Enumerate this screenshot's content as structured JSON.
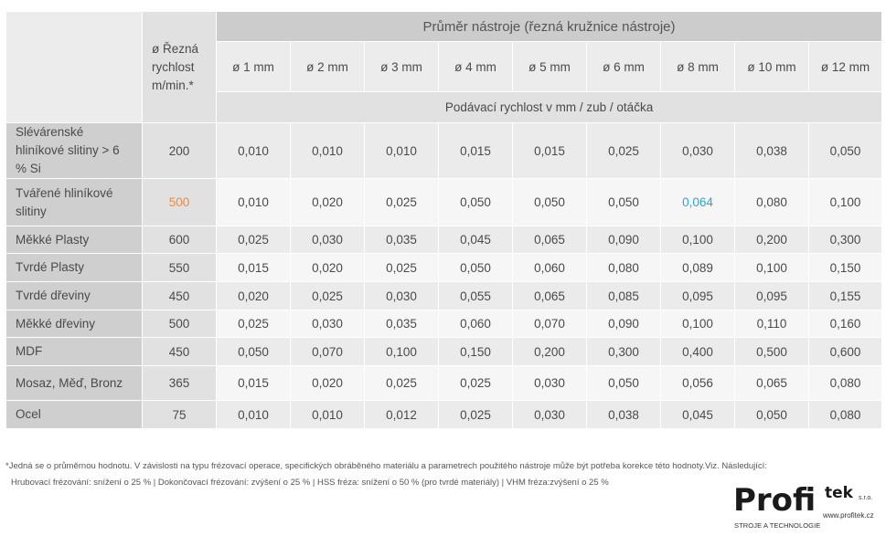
{
  "header": {
    "speed_label": "ø Řezná rychlost m/min.*",
    "group_title": "Průměr nástroje (řezná kružnice nástroje)",
    "diameters": [
      "ø 1 mm",
      "ø 2 mm",
      "ø 3 mm",
      "ø 4 mm",
      "ø 5 mm",
      "ø 6 mm",
      "ø 8 mm",
      "ø 10 mm",
      "ø 12 mm"
    ],
    "feed_label": "Podávací rychlost v mm / zub / otáčka"
  },
  "rows": [
    {
      "material": "Slévárenské hliníkové slitiny > 6 % Si",
      "speed": "200",
      "values": [
        "0,010",
        "0,010",
        "0,010",
        "0,015",
        "0,015",
        "0,025",
        "0,030",
        "0,038",
        "0,050"
      ]
    },
    {
      "material": "Tvářené hliníkové slitiny",
      "speed": "500",
      "values": [
        "0,010",
        "0,020",
        "0,025",
        "0,050",
        "0,050",
        "0,050",
        "0,064",
        "0,080",
        "0,100"
      ]
    },
    {
      "material": "Měkké Plasty",
      "speed": "600",
      "values": [
        "0,025",
        "0,030",
        "0,035",
        "0,045",
        "0,065",
        "0,090",
        "0,100",
        "0,200",
        "0,300"
      ]
    },
    {
      "material": "Tvrdé Plasty",
      "speed": "550",
      "values": [
        "0,015",
        "0,020",
        "0,025",
        "0,050",
        "0,060",
        "0,080",
        "0,089",
        "0,100",
        "0,150"
      ]
    },
    {
      "material": "Tvrdé dřeviny",
      "speed": "450",
      "values": [
        "0,020",
        "0,025",
        "0,030",
        "0,055",
        "0,065",
        "0,085",
        "0,095",
        "0,095",
        "0,155"
      ]
    },
    {
      "material": "Měkké dřeviny",
      "speed": "500",
      "values": [
        "0,025",
        "0,030",
        "0,035",
        "0,060",
        "0,070",
        "0,090",
        "0,100",
        "0,110",
        "0,160"
      ]
    },
    {
      "material": "MDF",
      "speed": "450",
      "values": [
        "0,050",
        "0,070",
        "0,100",
        "0,150",
        "0,200",
        "0,300",
        "0,400",
        "0,500",
        "0,600"
      ]
    },
    {
      "material": "Mosaz, Měď, Bronz",
      "speed": "365",
      "values": [
        "0,015",
        "0,020",
        "0,025",
        "0,025",
        "0,030",
        "0,050",
        "0,056",
        "0,065",
        "0,080"
      ]
    },
    {
      "material": "Ocel",
      "speed": "75",
      "values": [
        "0,010",
        "0,010",
        "0,012",
        "0,025",
        "0,030",
        "0,038",
        "0,045",
        "0,050",
        "0,080"
      ]
    }
  ],
  "highlights": {
    "accent_orange": "#f08a3c",
    "accent_blue": "#2aa6d8"
  },
  "footnote": {
    "line1": "*Jedná se o průměrnou hodnotu. V závislosti na typu frézovací operace, specifických obráběného materiálu a parametrech použitého nástroje může být potřeba korekce této hodnoty.Viz. Následující:",
    "line2": "Hrubovací frézování: snížení o 25 % | Dokončovací frézování: zvýšení o 25 % | HSS fréza: snížení o 50 % (pro tvrdé materiály) | VHM fréza:zvýšení o 25 %"
  },
  "logo": {
    "word": "Profi",
    "tek": "tek",
    "suffix": "s.r.o.",
    "website": "www.profitek.cz",
    "tagline": "STROJE A TECHNOLOGIE"
  }
}
